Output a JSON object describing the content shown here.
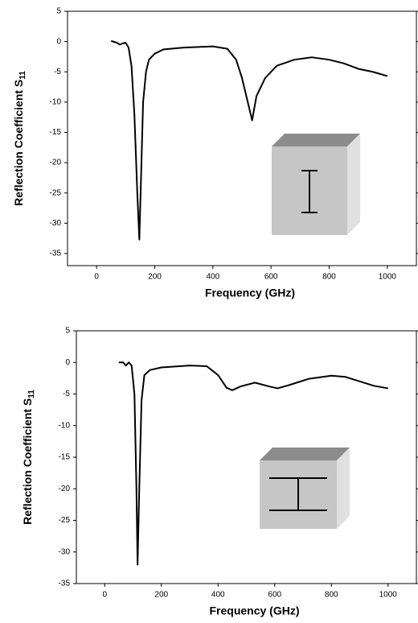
{
  "chart_data": [
    {
      "type": "line",
      "x_label": "Frequency (GHz)",
      "y_label": "Reflection Coefficient S",
      "y_label_sub": "11",
      "xlim": [
        -100,
        1100
      ],
      "ylim": [
        -37,
        5
      ],
      "xticks": [
        0,
        200,
        400,
        600,
        800,
        1000
      ],
      "yticks": [
        5,
        0,
        -5,
        -10,
        -15,
        -20,
        -25,
        -30,
        -35
      ],
      "x": [
        50,
        70,
        80,
        90,
        100,
        110,
        120,
        130,
        140,
        147,
        152,
        160,
        170,
        180,
        200,
        230,
        300,
        400,
        450,
        480,
        500,
        520,
        535,
        550,
        580,
        620,
        680,
        740,
        800,
        850,
        900,
        950,
        1000
      ],
      "series": [
        {
          "color": "#000000",
          "values": [
            0.1,
            -0.2,
            -0.5,
            -0.3,
            -0.2,
            -1,
            -4,
            -12,
            -25,
            -32.7,
            -24,
            -10,
            -5,
            -3,
            -2,
            -1.3,
            -1,
            -0.8,
            -1.2,
            -3,
            -6,
            -10,
            -13,
            -9,
            -6,
            -4,
            -3,
            -2.6,
            -3,
            -3.6,
            -4.5,
            -5,
            -5.7
          ]
        }
      ]
    },
    {
      "type": "line",
      "x_label": "Frequency (GHz)",
      "y_label": "Reflection Coefficient S",
      "y_label_sub": "11",
      "xlim": [
        -100,
        1100
      ],
      "ylim": [
        -35,
        5
      ],
      "xticks": [
        0,
        200,
        400,
        600,
        800,
        1000
      ],
      "yticks": [
        5,
        0,
        -5,
        -10,
        -15,
        -20,
        -25,
        -30,
        -35
      ],
      "x": [
        50,
        65,
        75,
        85,
        95,
        105,
        112,
        116,
        122,
        130,
        140,
        160,
        200,
        300,
        360,
        400,
        430,
        450,
        480,
        530,
        580,
        610,
        650,
        720,
        800,
        850,
        900,
        950,
        1000
      ],
      "series": [
        {
          "color": "#000000",
          "values": [
            0,
            0,
            -0.5,
            0,
            -0.5,
            -5,
            -20,
            -32,
            -20,
            -6,
            -2,
            -1.2,
            -0.8,
            -0.5,
            -0.6,
            -2,
            -4,
            -4.4,
            -3.8,
            -3.2,
            -3.8,
            -4.1,
            -3.6,
            -2.6,
            -2.1,
            -2.3,
            -3,
            -3.7,
            -4.1
          ]
        }
      ]
    }
  ]
}
